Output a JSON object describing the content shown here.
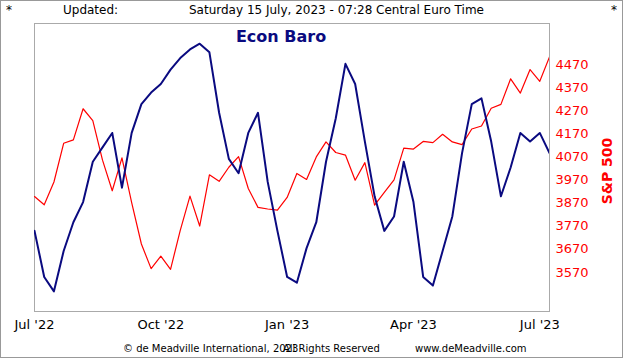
{
  "header": {
    "left": "*",
    "label": "Updated:",
    "text": "Saturday 15 July, 2023 - 07:28 Central Euro Time",
    "right": "*"
  },
  "chart_data": {
    "type": "line",
    "title": "Econ Baro",
    "y_label": "S&P 500",
    "categories": [
      "Jul '22",
      null,
      null,
      null,
      null,
      null,
      null,
      null,
      null,
      null,
      null,
      null,
      null,
      "Oct '22",
      null,
      null,
      null,
      null,
      null,
      null,
      null,
      null,
      null,
      null,
      null,
      null,
      "Jan '23",
      null,
      null,
      null,
      null,
      null,
      null,
      null,
      null,
      null,
      null,
      null,
      null,
      "Apr '23",
      null,
      null,
      null,
      null,
      null,
      null,
      null,
      null,
      null,
      null,
      null,
      null,
      "Jul '23",
      null
    ],
    "series": [
      {
        "name": "Econ Baro",
        "color": "#0a0a80",
        "axis": "y2",
        "values": [
          28,
          12,
          7,
          21,
          31,
          38,
          52,
          57,
          62,
          43,
          62,
          72,
          76,
          79,
          84,
          88,
          91,
          93,
          90,
          69,
          53,
          48,
          62,
          69,
          45,
          28,
          12,
          10,
          22,
          31,
          52,
          67,
          86,
          79,
          59,
          40,
          28,
          33,
          52,
          38,
          12,
          9,
          21,
          33,
          55,
          72,
          74,
          59,
          40,
          50,
          62,
          59,
          62,
          55
        ]
      },
      {
        "name": "S&P 500",
        "color": "#ff0000",
        "values": [
          3899,
          3863,
          3962,
          4130,
          4145,
          4280,
          4228,
          4057,
          3924,
          4067,
          3873,
          3693,
          3586,
          3640,
          3583,
          3752,
          3901,
          3771,
          3993,
          3965,
          4026,
          4072,
          3934,
          3852,
          3845,
          3840,
          3895,
          3999,
          3973,
          4071,
          4136,
          4090,
          4079,
          3970,
          4046,
          3862,
          3917,
          3971,
          4109,
          4105,
          4138,
          4133,
          4169,
          4136,
          4124,
          4192,
          4205,
          4282,
          4299,
          4410,
          4348,
          4450,
          4399,
          4505
        ]
      }
    ],
    "ylim": [
      3400,
      4650
    ],
    "yticks": [
      3570,
      3670,
      3770,
      3870,
      3970,
      4070,
      4170,
      4270,
      4370,
      4470
    ],
    "y2lim": [
      0,
      100
    ]
  },
  "footer": [
    "© de Meadville International, 2023",
    "All Rights Reserved",
    "www.deMeadville.com"
  ]
}
